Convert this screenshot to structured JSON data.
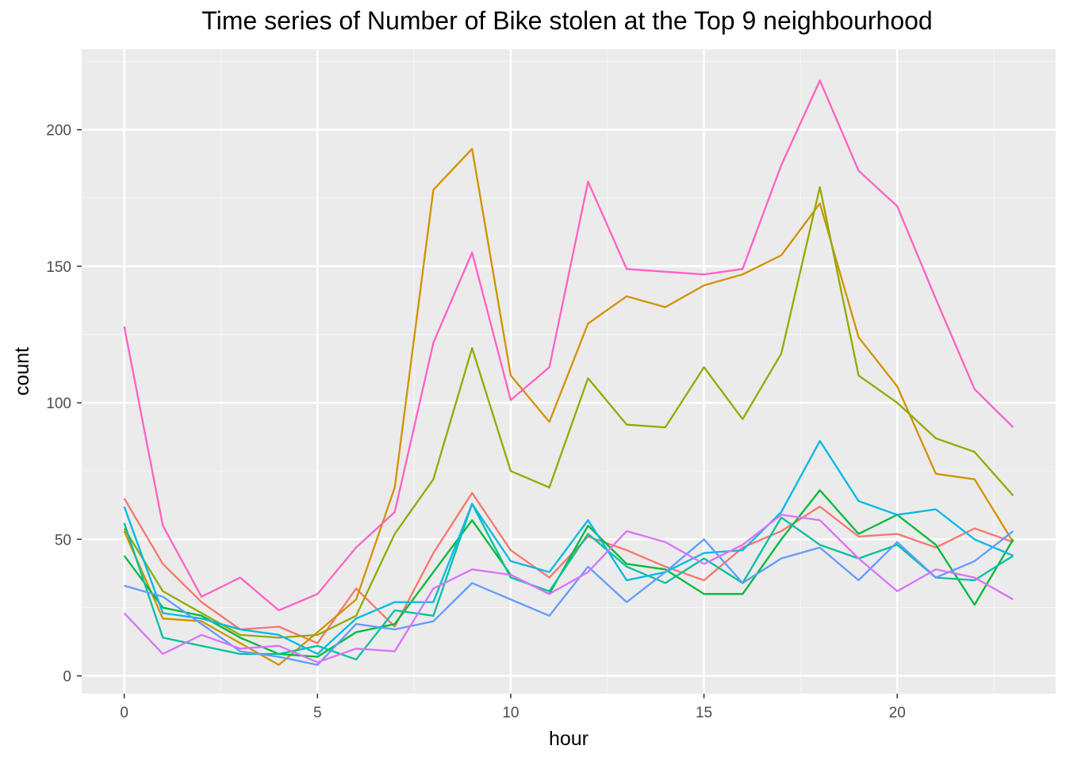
{
  "chart_data": {
    "type": "line",
    "title": "Time series of Number of Bike stolen at the Top 9 neighbourhood",
    "xlabel": "hour",
    "ylabel": "count",
    "xlim": [
      -1.1,
      24.1
    ],
    "ylim": [
      -6.5,
      229.5
    ],
    "x_ticks": [
      0,
      5,
      10,
      15,
      20
    ],
    "y_ticks": [
      0,
      50,
      100,
      150,
      200
    ],
    "grid": true,
    "legend": "none",
    "x": [
      0,
      1,
      2,
      3,
      4,
      5,
      6,
      7,
      8,
      9,
      10,
      11,
      12,
      13,
      14,
      15,
      16,
      17,
      18,
      19,
      20,
      21,
      22,
      23
    ],
    "series": [
      {
        "color": "#F8766D",
        "values": [
          65,
          41,
          27,
          17,
          18,
          12,
          32,
          18,
          45,
          67,
          46,
          36,
          51,
          46,
          40,
          35,
          47,
          53,
          62,
          51,
          52,
          47,
          54,
          49
        ]
      },
      {
        "color": "#D39200",
        "values": [
          53,
          21,
          20,
          12,
          4,
          16,
          28,
          69,
          178,
          193,
          110,
          93,
          129,
          139,
          135,
          143,
          147,
          154,
          173,
          124,
          106,
          74,
          72,
          49
        ]
      },
      {
        "color": "#93AA00",
        "values": [
          54,
          31,
          23,
          15,
          14,
          15,
          22,
          52,
          72,
          120,
          75,
          69,
          109,
          92,
          91,
          113,
          94,
          118,
          179,
          110,
          100,
          87,
          82,
          66
        ]
      },
      {
        "color": "#00BA38",
        "values": [
          44,
          25,
          22,
          14,
          8,
          7,
          16,
          19,
          38,
          57,
          37,
          30,
          55,
          41,
          39,
          30,
          30,
          50,
          68,
          52,
          59,
          48,
          26,
          50
        ]
      },
      {
        "color": "#00C19F",
        "values": [
          56,
          14,
          11,
          8,
          8,
          11,
          6,
          24,
          22,
          63,
          36,
          31,
          52,
          40,
          34,
          43,
          34,
          58,
          48,
          43,
          48,
          36,
          35,
          44
        ]
      },
      {
        "color": "#00B9E3",
        "values": [
          62,
          23,
          21,
          17,
          15,
          8,
          21,
          27,
          27,
          63,
          42,
          38,
          57,
          35,
          38,
          45,
          46,
          60,
          86,
          64,
          59,
          61,
          50,
          44
        ]
      },
      {
        "color": "#619CFF",
        "values": [
          33,
          29,
          19,
          9,
          7,
          4,
          19,
          17,
          20,
          34,
          28,
          22,
          40,
          27,
          38,
          50,
          34,
          43,
          47,
          35,
          49,
          36,
          42,
          53
        ]
      },
      {
        "color": "#DB72FB",
        "values": [
          23,
          8,
          15,
          10,
          11,
          5,
          10,
          9,
          32,
          39,
          37,
          30,
          38,
          53,
          49,
          41,
          48,
          59,
          57,
          43,
          31,
          39,
          36,
          28
        ]
      },
      {
        "color": "#FF61C3",
        "values": [
          128,
          55,
          29,
          36,
          24,
          30,
          47,
          60,
          122,
          155,
          101,
          113,
          181,
          149,
          148,
          147,
          149,
          187,
          218,
          185,
          172,
          138,
          105,
          91
        ]
      }
    ]
  },
  "style": {
    "panel_bg": "#EBEBEB",
    "grid_major": "#FFFFFF",
    "grid_minor": "#F5F5F5"
  }
}
